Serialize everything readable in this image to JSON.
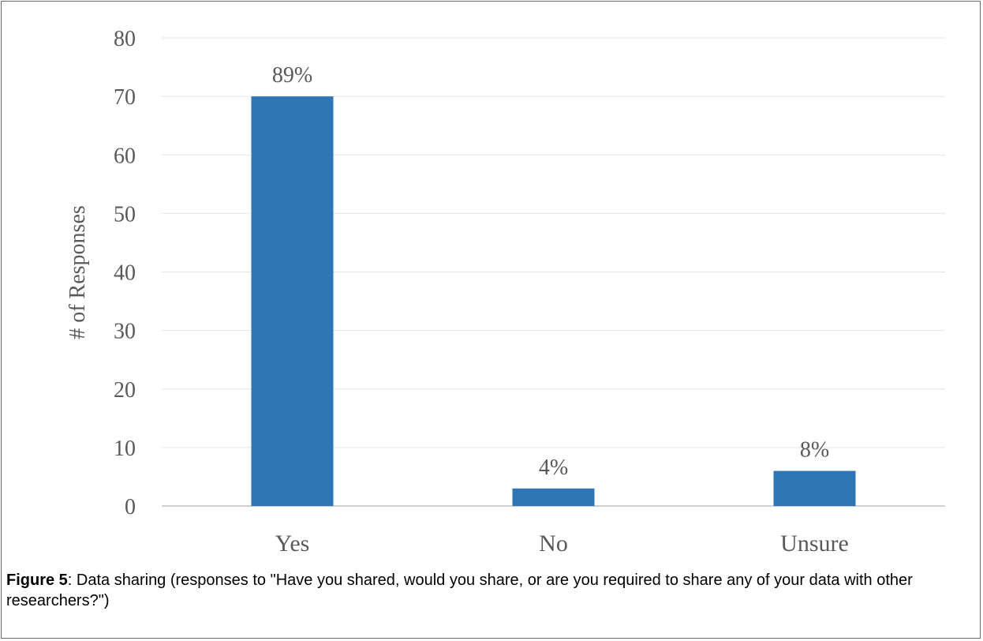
{
  "chart_data": {
    "type": "bar",
    "categories": [
      "Yes",
      "No",
      "Unsure"
    ],
    "values": [
      70,
      3,
      6
    ],
    "data_labels": [
      "89%",
      "4%",
      "8%"
    ],
    "ylabel": "# of Responses",
    "xlabel": "",
    "ylim": [
      0,
      80
    ],
    "yticks": [
      "0",
      "10",
      "20",
      "30",
      "40",
      "50",
      "60",
      "70",
      "80"
    ],
    "grid": true,
    "legend": "none",
    "colors": {
      "bar": "#2e75b6",
      "grid": "#e4e4e4",
      "axis": "#bfbfbf",
      "text": "#595959"
    }
  },
  "caption": {
    "label": "Figure 5",
    "text": ": Data sharing (responses to \"Have you shared, would you share, or are you required to share any of your data with other researchers?\")"
  }
}
